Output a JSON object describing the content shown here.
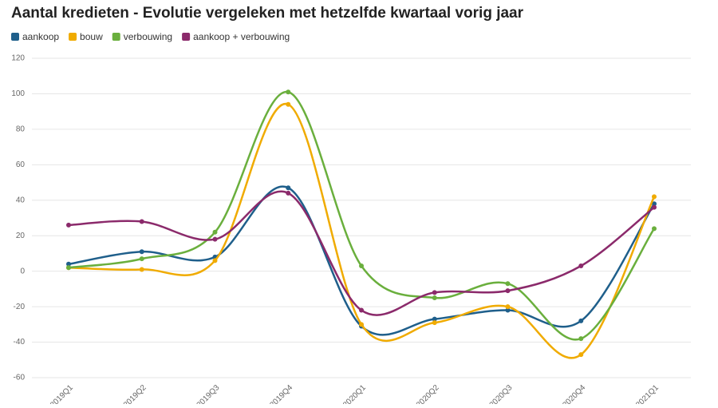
{
  "chart_data": {
    "type": "line",
    "title": "Aantal kredieten - Evolutie vergeleken met hetzelfde kwartaal vorig jaar",
    "categories": [
      "2019Q1",
      "2019Q2",
      "2019Q3",
      "2019Q4",
      "2020Q1",
      "2020Q2",
      "2020Q3",
      "2020Q4",
      "2021Q1"
    ],
    "series": [
      {
        "name": "aankoop",
        "color": "#1f5f8b",
        "values": [
          4,
          11,
          8,
          47,
          -31,
          -27,
          -22,
          -28,
          38
        ]
      },
      {
        "name": "bouw",
        "color": "#f0ab00",
        "values": [
          2,
          1,
          6,
          94,
          -30,
          -29,
          -20,
          -47,
          42
        ]
      },
      {
        "name": "verbouwing",
        "color": "#6aaf3d",
        "values": [
          2,
          7,
          22,
          101,
          3,
          -15,
          -7,
          -38,
          24
        ]
      },
      {
        "name": "aankoop + verbouwing",
        "color": "#8b2a6b",
        "values": [
          26,
          28,
          18,
          44,
          -22,
          -12,
          -11,
          3,
          36
        ]
      }
    ],
    "ylim": [
      -60,
      120
    ],
    "yticks": [
      -60,
      -40,
      -20,
      0,
      20,
      40,
      60,
      80,
      100,
      120
    ],
    "grid": true
  }
}
